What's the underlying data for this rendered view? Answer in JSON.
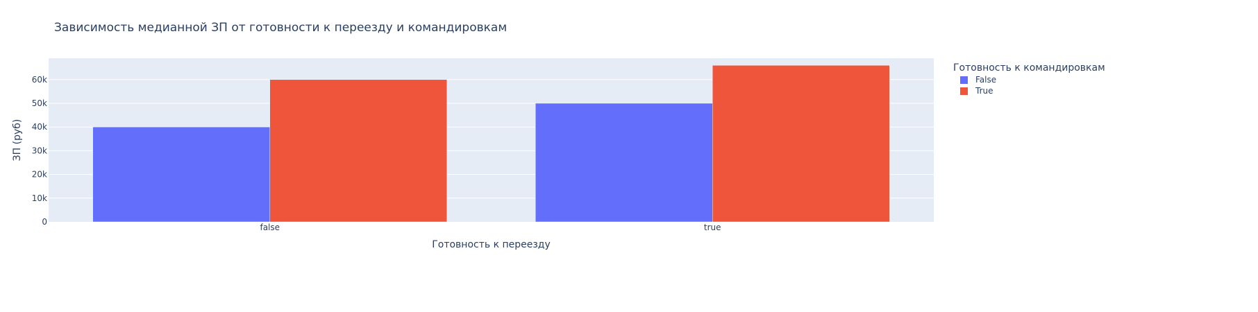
{
  "chart_data": {
    "type": "bar",
    "title": "Зависимость медианной ЗП от готовности к переезду и командировкам",
    "xlabel": "Готовность к переезду",
    "ylabel": "ЗП (руб)",
    "categories": [
      "false",
      "true"
    ],
    "series": [
      {
        "name": "False",
        "values": [
          40000,
          50000
        ],
        "color": "#636efa"
      },
      {
        "name": "True",
        "values": [
          60000,
          66000
        ],
        "color": "#ef553b"
      }
    ],
    "ylim": [
      0,
      69000
    ],
    "yticks": [
      0,
      10000,
      20000,
      30000,
      40000,
      50000,
      60000
    ],
    "ytick_labels": [
      "0",
      "10k",
      "20k",
      "30k",
      "40k",
      "50k",
      "60k"
    ],
    "legend": {
      "title": "Готовность к командировкам",
      "position": "top-right"
    },
    "grid": true,
    "barmode": "group",
    "plot_bgcolor": "#e5ecf6",
    "grid_color": "#ffffff"
  }
}
